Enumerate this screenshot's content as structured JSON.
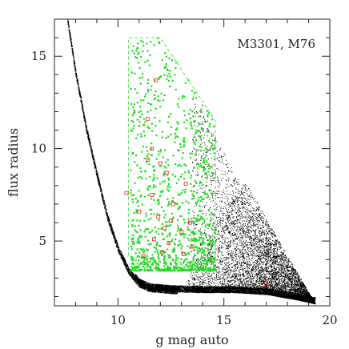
{
  "chart_data": {
    "type": "scatter",
    "title": "",
    "annotation": "M3301, M76",
    "xlabel": "g mag auto",
    "ylabel": "flux radius",
    "xlim": [
      7,
      20
    ],
    "ylim": [
      1.5,
      17
    ],
    "x_ticks": [
      10,
      15,
      20
    ],
    "y_ticks": [
      5,
      10,
      15
    ],
    "grid": false,
    "colors": {
      "all_sources": "#000000",
      "selected_sources": "#22dd22",
      "candidates": "#ff2222",
      "selection_box": "#33dd33"
    },
    "series": [
      {
        "role": "all_sources",
        "description_trace": [
          [
            7.6,
            17.0
          ],
          [
            8.0,
            14.0
          ],
          [
            8.5,
            11.0
          ],
          [
            9.0,
            8.5
          ],
          [
            9.5,
            6.2
          ],
          [
            10.0,
            4.5
          ],
          [
            10.5,
            3.3
          ],
          [
            11.0,
            2.6
          ],
          [
            11.5,
            2.35
          ],
          [
            12.5,
            2.25
          ],
          [
            14.0,
            2.2
          ],
          [
            15.5,
            2.2
          ],
          [
            17.0,
            2.1
          ],
          [
            18.5,
            1.8
          ],
          [
            19.3,
            1.6
          ]
        ]
      },
      {
        "role": "selected_sources",
        "x_range": [
          10.6,
          14.6
        ],
        "y_range": [
          3.4,
          16.0
        ]
      },
      {
        "role": "candidates",
        "points": [
          [
            11.8,
            13.7
          ],
          [
            11.4,
            11.6
          ],
          [
            11.6,
            10.0
          ],
          [
            11.4,
            9.4
          ],
          [
            12.0,
            9.2
          ],
          [
            12.3,
            8.7
          ],
          [
            13.2,
            8.1
          ],
          [
            10.4,
            7.6
          ],
          [
            11.6,
            7.5
          ],
          [
            12.6,
            7.0
          ],
          [
            11.0,
            6.6
          ],
          [
            11.9,
            6.3
          ],
          [
            12.5,
            6.1
          ],
          [
            13.4,
            6.0
          ],
          [
            12.2,
            5.7
          ],
          [
            13.0,
            5.5
          ],
          [
            11.7,
            5.1
          ],
          [
            12.4,
            4.9
          ],
          [
            13.5,
            4.7
          ],
          [
            11.2,
            4.2
          ],
          [
            12.1,
            4.4
          ],
          [
            13.1,
            4.3
          ],
          [
            17.0,
            2.6
          ]
        ]
      }
    ],
    "selection_polygon": [
      [
        10.5,
        4.2
      ],
      [
        10.5,
        16.0
      ],
      [
        12.0,
        16.0
      ],
      [
        14.6,
        11.5
      ],
      [
        14.6,
        3.4
      ]
    ]
  }
}
